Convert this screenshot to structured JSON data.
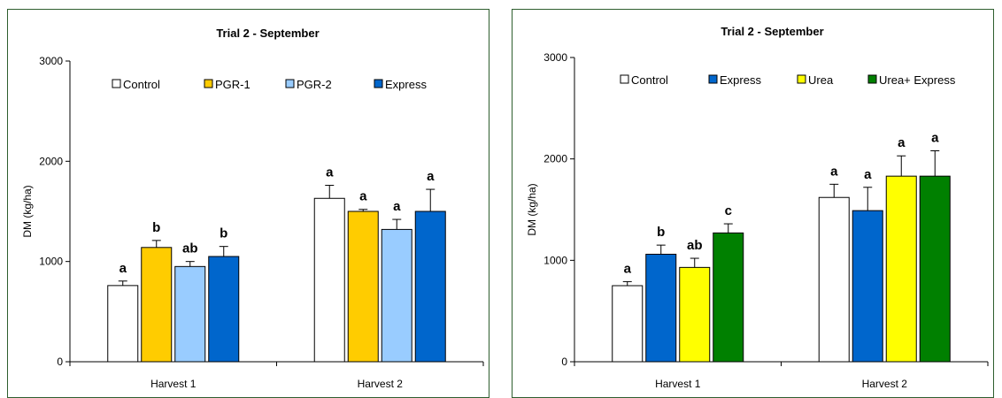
{
  "chart_data": [
    {
      "type": "bar",
      "title": "Trial 2 - September",
      "ylabel": "DM (kg/ha)",
      "xlabel": "",
      "ylim": [
        0,
        3000
      ],
      "yticks": [
        0,
        1000,
        2000,
        3000
      ],
      "grid": false,
      "legend_position": "top",
      "categories": [
        "Harvest 1",
        "Harvest 2"
      ],
      "series": [
        {
          "name": "Control",
          "color": "#ffffff",
          "values": [
            760,
            1630
          ],
          "errors": [
            45,
            130
          ],
          "labels": [
            "a",
            "a"
          ]
        },
        {
          "name": "PGR-1",
          "color": "#ffcc00",
          "values": [
            1140,
            1500
          ],
          "errors": [
            70,
            20
          ],
          "labels": [
            "b",
            "a"
          ]
        },
        {
          "name": "PGR-2",
          "color": "#99ccff",
          "values": [
            950,
            1320
          ],
          "errors": [
            50,
            100
          ],
          "labels": [
            "ab",
            "a"
          ]
        },
        {
          "name": "Express",
          "color": "#0066cc",
          "values": [
            1050,
            1500
          ],
          "errors": [
            100,
            220
          ],
          "labels": [
            "b",
            "a"
          ]
        }
      ]
    },
    {
      "type": "bar",
      "title": "Trial 2 - September",
      "ylabel": "DM (kg/ha)",
      "xlabel": "",
      "ylim": [
        0,
        3000
      ],
      "yticks": [
        0,
        1000,
        2000,
        3000
      ],
      "grid": false,
      "legend_position": "top",
      "categories": [
        "Harvest 1",
        "Harvest 2"
      ],
      "series": [
        {
          "name": "Control",
          "color": "#ffffff",
          "values": [
            750,
            1620
          ],
          "errors": [
            40,
            130
          ],
          "labels": [
            "a",
            "a"
          ]
        },
        {
          "name": "Express",
          "color": "#0066cc",
          "values": [
            1060,
            1490
          ],
          "errors": [
            90,
            230
          ],
          "labels": [
            "b",
            "a"
          ]
        },
        {
          "name": "Urea",
          "color": "#ffff00",
          "values": [
            930,
            1830
          ],
          "errors": [
            90,
            200
          ],
          "labels": [
            "ab",
            "a"
          ]
        },
        {
          "name": "Urea+ Express",
          "color": "#008000",
          "values": [
            1270,
            1830
          ],
          "errors": [
            90,
            250
          ],
          "labels": [
            "c",
            "a"
          ]
        }
      ]
    }
  ]
}
